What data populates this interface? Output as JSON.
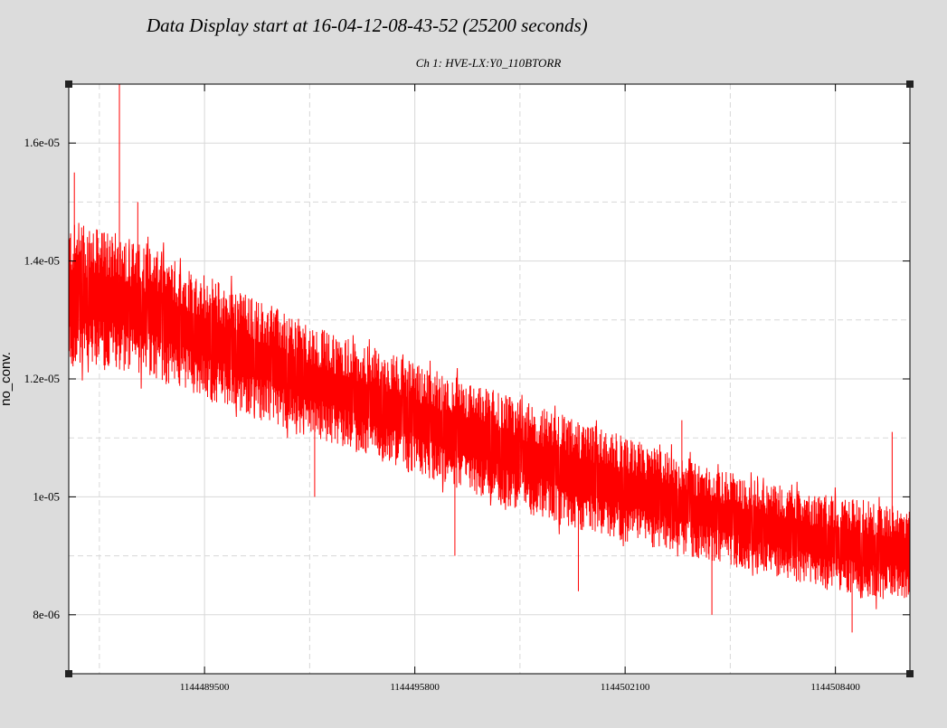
{
  "page": {
    "title": "Data Display start at 16-04-12-08-43-52 (25200 seconds)"
  },
  "chart_data": {
    "type": "line",
    "subtitle": "Ch 1: HVE-LX:Y0_110BTORR",
    "xlabel": "",
    "ylabel": "no_conv.",
    "xlim": [
      1144485432,
      1144510632
    ],
    "ylim": [
      7e-06,
      1.7e-05
    ],
    "grid": true,
    "x_ticks": [
      {
        "value": 1144489500,
        "label": "1144489500"
      },
      {
        "value": 1144495800,
        "label": "1144495800"
      },
      {
        "value": 1144502100,
        "label": "1144502100"
      },
      {
        "value": 1144508400,
        "label": "1144508400"
      }
    ],
    "y_ticks": [
      {
        "value": 8e-06,
        "label": "8e-06"
      },
      {
        "value": 1e-05,
        "label": "1e-05"
      },
      {
        "value": 1.2e-05,
        "label": "1.2e-05"
      },
      {
        "value": 1.4e-05,
        "label": "1.4e-05"
      },
      {
        "value": 1.6e-05,
        "label": "1.6e-05"
      }
    ],
    "series": [
      {
        "color": "#ff0000",
        "x": [
          1144485432,
          1144487000,
          1144488500,
          1144490000,
          1144491500,
          1144493000,
          1144494500,
          1144496000,
          1144497500,
          1144499000,
          1144500500,
          1144502000,
          1144503500,
          1144505000,
          1144506500,
          1144508000,
          1144509500,
          1144510632
        ],
        "low": [
          1.22e-05,
          1.22e-05,
          1.19e-05,
          1.16e-05,
          1.13e-05,
          1.1e-05,
          1.07e-05,
          1.04e-05,
          1.01e-05,
          9.8e-06,
          9.5e-06,
          9.3e-06,
          9.1e-06,
          8.9e-06,
          8.7e-06,
          8.5e-06,
          8.3e-06,
          8.3e-06
        ],
        "high": [
          1.46e-05,
          1.44e-05,
          1.4e-05,
          1.36e-05,
          1.32e-05,
          1.28e-05,
          1.25e-05,
          1.22e-05,
          1.19e-05,
          1.16e-05,
          1.13e-05,
          1.1e-05,
          1.07e-05,
          1.04e-05,
          1.02e-05,
          1e-05,
          9.9e-06,
          9.8e-06
        ],
        "spikes": [
          {
            "x": 1144486950,
            "y": 1.7e-05
          },
          {
            "x": 1144485600,
            "y": 1.55e-05
          },
          {
            "x": 1144487500,
            "y": 1.5e-05
          },
          {
            "x": 1144491200,
            "y": 1.13e-05
          },
          {
            "x": 1144492800,
            "y": 1e-05
          },
          {
            "x": 1144497000,
            "y": 9e-06
          },
          {
            "x": 1144500700,
            "y": 8.4e-06
          },
          {
            "x": 1144504700,
            "y": 8e-06
          },
          {
            "x": 1144508900,
            "y": 7.7e-06
          },
          {
            "x": 1144510100,
            "y": 1.11e-05
          },
          {
            "x": 1144503800,
            "y": 1.13e-05
          }
        ]
      }
    ]
  }
}
